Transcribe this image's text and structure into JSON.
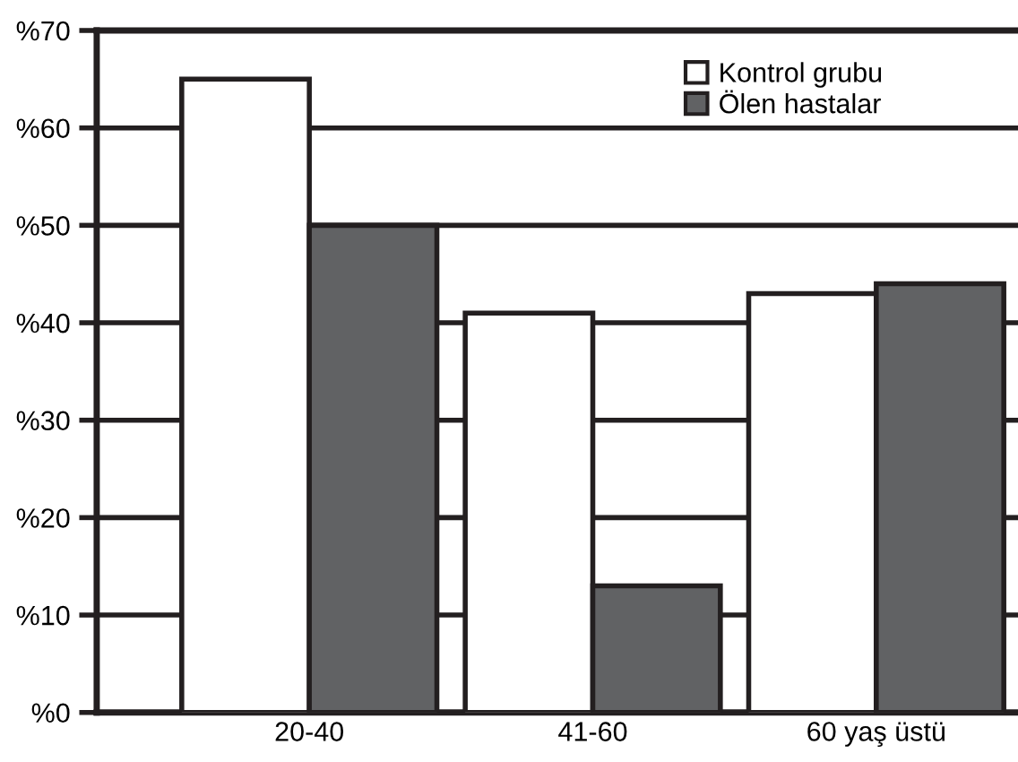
{
  "chart_data": {
    "type": "bar",
    "categories": [
      "20-40",
      "41-60",
      "60 yaş üstü"
    ],
    "series": [
      {
        "name": "Kontrol grubu",
        "color": "#ffffff",
        "values": [
          65,
          41,
          43
        ]
      },
      {
        "name": "Ölen hastalar",
        "color": "#616264",
        "values": [
          50,
          13,
          44
        ]
      }
    ],
    "ylim": [
      0,
      70
    ],
    "yticks": [
      {
        "value": 0,
        "label": "%0"
      },
      {
        "value": 10,
        "label": "%10"
      },
      {
        "value": 20,
        "label": "%20"
      },
      {
        "value": 30,
        "label": "%30"
      },
      {
        "value": 40,
        "label": "%40"
      },
      {
        "value": 50,
        "label": "%50"
      },
      {
        "value": 60,
        "label": "%60"
      },
      {
        "value": 70,
        "label": "%70"
      }
    ],
    "grid": "y",
    "legend": "top right"
  }
}
